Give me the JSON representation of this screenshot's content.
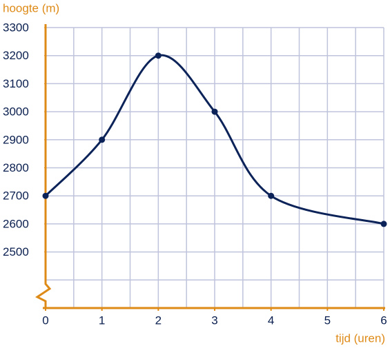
{
  "chart_data": {
    "type": "line",
    "x_label": "tijd (uren)",
    "y_label": "hoogte (m)",
    "x": [
      0,
      1,
      2,
      3,
      4,
      6
    ],
    "values": [
      2700,
      2900,
      3200,
      3000,
      2700,
      2600
    ],
    "color": "#0b2358",
    "axis_color": "#de8a17",
    "grid_color": "#bfc3dc",
    "xlim": [
      0,
      6
    ],
    "xticks": [
      0,
      1,
      2,
      3,
      4,
      5,
      6
    ],
    "ylim": [
      2300,
      3300
    ],
    "yticks": [
      2500,
      2600,
      2700,
      2800,
      2900,
      3000,
      3100,
      3200,
      3300
    ],
    "grid": true,
    "smooth": true,
    "markers": true,
    "axis_break": true
  }
}
